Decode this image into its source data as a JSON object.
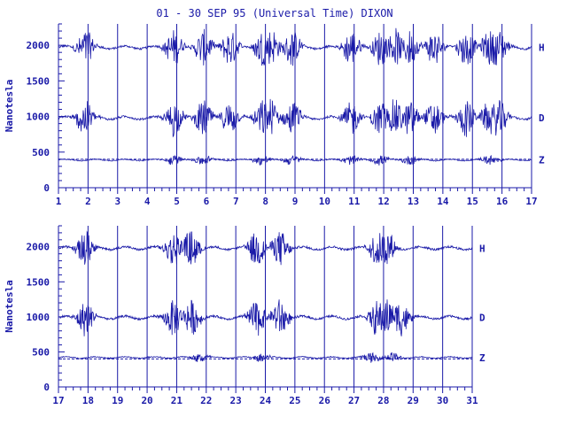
{
  "title": "01 - 30 SEP 95 (Universal Time) DIXON",
  "colors": {
    "ink": "#1a1aa8"
  },
  "chart_data": [
    {
      "type": "line",
      "panel": "top",
      "ylabel": "Nanotesla",
      "x_ticks": [
        "1",
        "2",
        "3",
        "4",
        "5",
        "6",
        "7",
        "8",
        "9",
        "10",
        "11",
        "12",
        "13",
        "14",
        "15",
        "16",
        "17"
      ],
      "xlim": [
        1,
        17
      ],
      "ylim": [
        0,
        2300
      ],
      "y_ticks": [
        "0",
        "500",
        "1000",
        "1500",
        "2000"
      ],
      "y_tick_values": [
        0,
        500,
        1000,
        1500,
        2000
      ],
      "grid": "vertical day lines",
      "series": [
        {
          "name": "H",
          "baseline": 1970,
          "disturbed_days": [
            1.9,
            4.9,
            5.9,
            6.8,
            7.9,
            8.2,
            8.9,
            10.9,
            11.9,
            12.4,
            12.9,
            13.7,
            14.8,
            15.6,
            15.9
          ]
        },
        {
          "name": "D",
          "baseline": 980,
          "disturbed_days": [
            1.9,
            4.9,
            5.9,
            6.8,
            7.9,
            8.2,
            8.9,
            10.9,
            11.9,
            12.4,
            12.9,
            13.7,
            14.8,
            15.6,
            15.9
          ]
        },
        {
          "name": "Z",
          "baseline": 390,
          "reference": 400,
          "disturbed_days": [
            4.9,
            5.9,
            7.9,
            8.9,
            10.9,
            11.9,
            12.9,
            15.6
          ]
        }
      ]
    },
    {
      "type": "line",
      "panel": "bottom",
      "ylabel": "Nanotesla",
      "x_ticks": [
        "17",
        "18",
        "19",
        "20",
        "21",
        "22",
        "23",
        "24",
        "25",
        "26",
        "27",
        "28",
        "29",
        "30",
        "31"
      ],
      "xlim": [
        17,
        31
      ],
      "ylim": [
        0,
        2300
      ],
      "y_ticks": [
        "0",
        "500",
        "1000",
        "1500",
        "2000"
      ],
      "y_tick_values": [
        0,
        500,
        1000,
        1500,
        2000
      ],
      "grid": "vertical day lines",
      "series": [
        {
          "name": "H",
          "baseline": 1980,
          "disturbed_days": [
            17.9,
            20.9,
            21.5,
            23.7,
            24.5,
            27.8,
            28.1
          ]
        },
        {
          "name": "D",
          "baseline": 990,
          "disturbed_days": [
            17.9,
            20.9,
            21.5,
            23.7,
            24.5,
            27.8,
            28.1,
            28.6
          ]
        },
        {
          "name": "Z",
          "baseline": 420,
          "reference": 400,
          "disturbed_days": [
            21.8,
            23.9,
            27.6,
            28.3
          ]
        }
      ]
    }
  ]
}
